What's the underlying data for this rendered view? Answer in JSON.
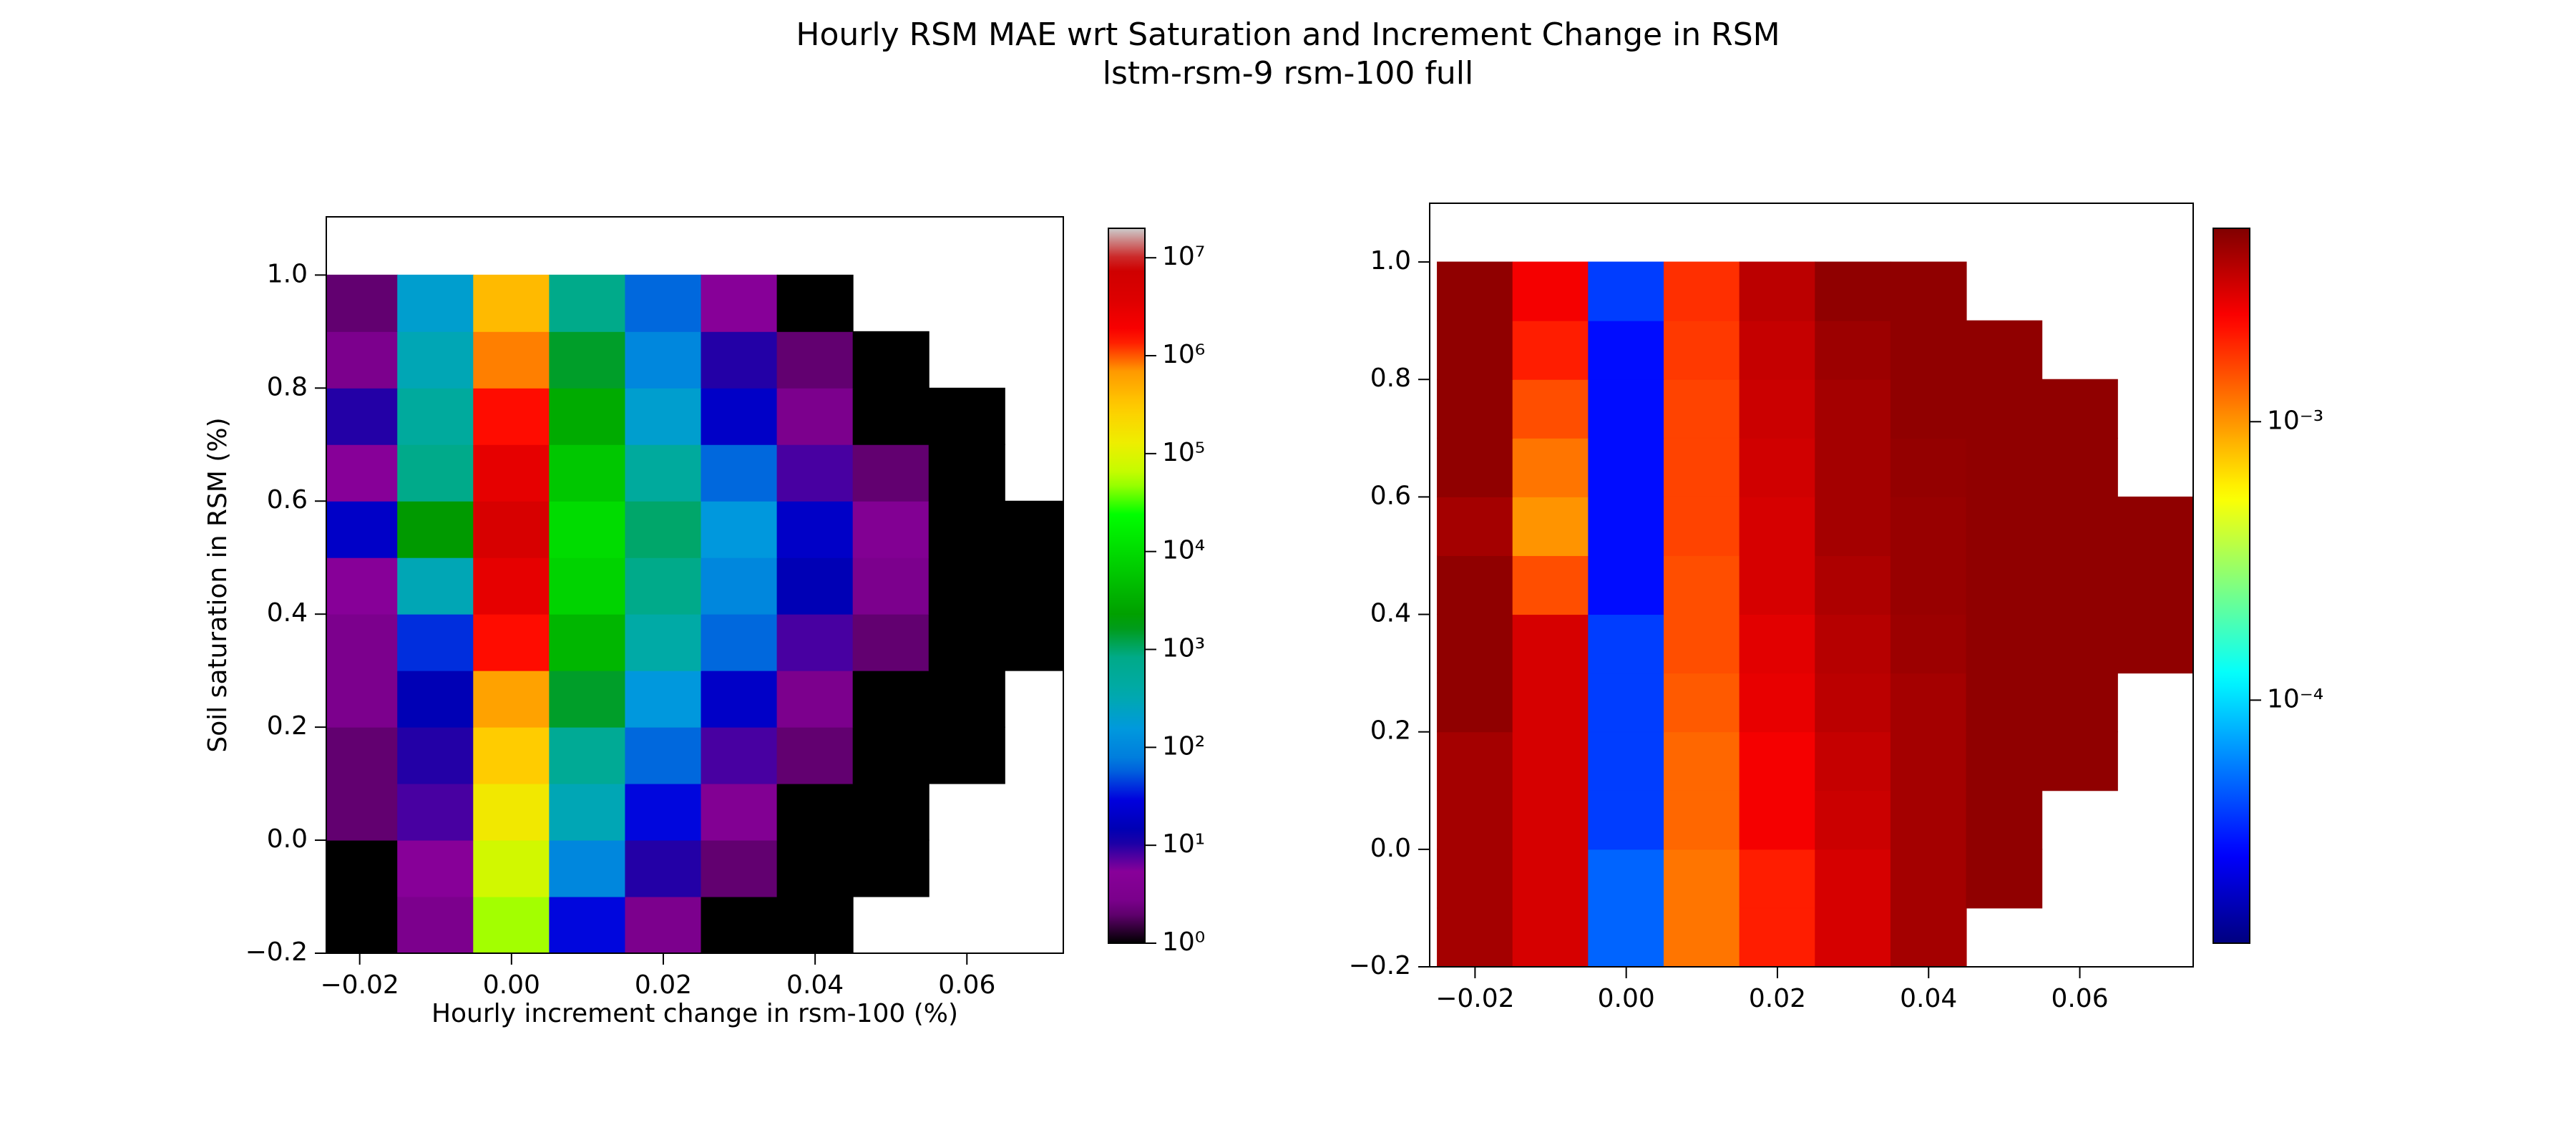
{
  "title": "Hourly RSM MAE wrt Saturation and Increment Change in RSM",
  "subtitle": "lstm-rsm-9 rsm-100 full",
  "chart_data": [
    {
      "type": "hist2d",
      "xlabel": "Hourly increment change in rsm-100 (%)",
      "ylabel": "Soil saturation in RSM (%)",
      "xbins": [
        -0.025,
        -0.015,
        -0.005,
        0.005,
        0.015,
        0.025,
        0.035,
        0.045,
        0.055,
        0.065,
        0.075
      ],
      "ybins": [
        -0.2,
        -0.1,
        0.0,
        0.1,
        0.2,
        0.3,
        0.4,
        0.5,
        0.6,
        0.7,
        0.8,
        0.9,
        1.0
      ],
      "z": [
        [
          1,
          3,
          50000,
          30,
          3,
          1,
          1,
          null,
          null,
          null
        ],
        [
          1,
          5,
          80000,
          100,
          10,
          2,
          1,
          1,
          null,
          null
        ],
        [
          2,
          8,
          150000,
          300,
          30,
          4,
          1,
          1,
          null,
          null
        ],
        [
          2,
          10,
          300000,
          600,
          60,
          8,
          2,
          1,
          1,
          null
        ],
        [
          3,
          15,
          600000,
          1500,
          150,
          20,
          3,
          1,
          1,
          null
        ],
        [
          3,
          40,
          1500000,
          4000,
          400,
          60,
          8,
          2,
          1,
          1
        ],
        [
          5,
          300,
          3000000,
          8000,
          800,
          100,
          15,
          3,
          1,
          1
        ],
        [
          20,
          2000,
          5000000,
          10000,
          1000,
          150,
          20,
          4,
          1,
          1
        ],
        [
          5,
          800,
          3000000,
          6000,
          500,
          60,
          8,
          2,
          1,
          null
        ],
        [
          10,
          500,
          1500000,
          3000,
          200,
          20,
          3,
          1,
          1,
          null
        ],
        [
          3,
          300,
          800000,
          1500,
          100,
          10,
          2,
          1,
          null,
          null
        ],
        [
          2,
          200,
          400000,
          800,
          60,
          5,
          1,
          null,
          null,
          null
        ]
      ],
      "xlim": [
        -0.0244,
        0.0727
      ],
      "ylim": [
        -0.2,
        1.103
      ],
      "xticks": [
        {
          "value": -0.02,
          "label": "−0.02"
        },
        {
          "value": 0,
          "label": "0.00"
        },
        0.02,
        0.04,
        0.06
      ],
      "yticks": [
        {
          "value": -0.2,
          "label": "−0.2"
        },
        {
          "value": 0,
          "label": "0.0"
        },
        0.2,
        0.4,
        0.6,
        0.8,
        {
          "value": 1,
          "label": "1.0"
        }
      ],
      "colormap": "nipy_spectral",
      "norm": "log",
      "clim": [
        1,
        20000000
      ],
      "cticks": [
        {
          "value": 1,
          "label": "10⁰"
        },
        {
          "value": 10,
          "label": "10¹"
        },
        {
          "value": 100,
          "label": "10²"
        },
        {
          "value": 1000,
          "label": "10³"
        },
        {
          "value": 10000,
          "label": "10⁴"
        },
        {
          "value": 100000,
          "label": "10⁵"
        },
        {
          "value": 1000000,
          "label": "10⁶"
        },
        {
          "value": 10000000,
          "label": "10⁷"
        }
      ]
    },
    {
      "type": "hist2d",
      "xbins": [
        -0.025,
        -0.015,
        -0.005,
        0.005,
        0.015,
        0.025,
        0.035,
        0.045,
        0.055,
        0.065,
        0.075
      ],
      "ybins": [
        -0.2,
        -0.1,
        0.0,
        0.1,
        0.2,
        0.3,
        0.4,
        0.5,
        0.6,
        0.7,
        0.8,
        0.9,
        1.0
      ],
      "z": [
        [
          0.004,
          0.003,
          5e-05,
          0.0012,
          0.002,
          0.003,
          0.004,
          null,
          null,
          null
        ],
        [
          0.004,
          0.003,
          5e-05,
          0.0012,
          0.002,
          0.003,
          0.004,
          0.0045,
          null,
          null
        ],
        [
          0.004,
          0.003,
          4e-05,
          0.0013,
          0.0025,
          0.0032,
          0.004,
          0.0045,
          null,
          null
        ],
        [
          0.004,
          0.003,
          4e-05,
          0.0013,
          0.0025,
          0.0033,
          0.004,
          0.0045,
          0.0045,
          null
        ],
        [
          0.0045,
          0.003,
          4e-05,
          0.0014,
          0.0027,
          0.0035,
          0.004,
          0.0045,
          0.0045,
          null
        ],
        [
          0.0045,
          0.003,
          4e-05,
          0.0015,
          0.0028,
          0.0036,
          0.0042,
          0.0045,
          0.0045,
          0.0045
        ],
        [
          0.0045,
          0.0015,
          3e-05,
          0.0015,
          0.003,
          0.0038,
          0.0043,
          0.0045,
          0.0045,
          0.0045
        ],
        [
          0.004,
          0.001,
          3e-05,
          0.0016,
          0.003,
          0.004,
          0.0043,
          0.0045,
          0.0045,
          0.0045
        ],
        [
          0.0045,
          0.0012,
          3e-05,
          0.0016,
          0.0031,
          0.004,
          0.0044,
          0.0045,
          0.0045,
          null
        ],
        [
          0.0045,
          0.0015,
          3e-05,
          0.0016,
          0.0032,
          0.004,
          0.0045,
          0.0045,
          0.0045,
          null
        ],
        [
          0.0045,
          0.002,
          3e-05,
          0.0017,
          0.0033,
          0.0042,
          0.0045,
          0.0045,
          null,
          null
        ],
        [
          0.0045,
          0.0025,
          4e-05,
          0.0018,
          0.0035,
          0.0045,
          0.0045,
          null,
          null,
          null
        ]
      ],
      "xlim": [
        -0.026,
        0.075
      ],
      "ylim": [
        -0.2,
        1.1
      ],
      "xticks": [
        {
          "value": -0.02,
          "label": "−0.02"
        },
        {
          "value": 0,
          "label": "0.00"
        },
        0.02,
        0.04,
        0.06
      ],
      "yticks": [
        {
          "value": -0.2,
          "label": "−0.2"
        },
        {
          "value": 0,
          "label": "0.0"
        },
        0.2,
        0.4,
        0.6,
        0.8,
        {
          "value": 1,
          "label": "1.0"
        }
      ],
      "colormap": "jet",
      "norm": "log",
      "clim": [
        1.34e-05,
        0.00495
      ],
      "cticks": [
        {
          "value": 0.0001,
          "label": "10⁻⁴"
        },
        {
          "value": 0.001,
          "label": "10⁻³"
        }
      ]
    }
  ]
}
